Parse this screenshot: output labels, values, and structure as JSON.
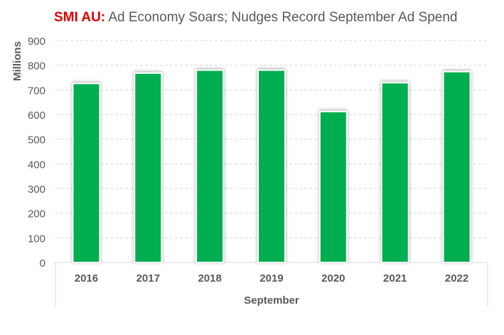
{
  "chart_data": {
    "type": "bar",
    "title_prefix": "SMI AU:",
    "title": "Ad Economy Soars; Nudges Record September Ad Spend",
    "xlabel": "September",
    "ylabel": "Millions",
    "categories": [
      "2016",
      "2017",
      "2018",
      "2019",
      "2020",
      "2021",
      "2022"
    ],
    "values": [
      726,
      768,
      780,
      780,
      612,
      729,
      774
    ],
    "ylim": [
      0,
      900
    ],
    "yticks": [
      "0",
      "100",
      "200",
      "300",
      "400",
      "500",
      "600",
      "700",
      "800",
      "900"
    ],
    "grid": true,
    "colors": {
      "bar": "#00ae4f",
      "title_prefix": "#e00000",
      "text": "#595959"
    }
  }
}
